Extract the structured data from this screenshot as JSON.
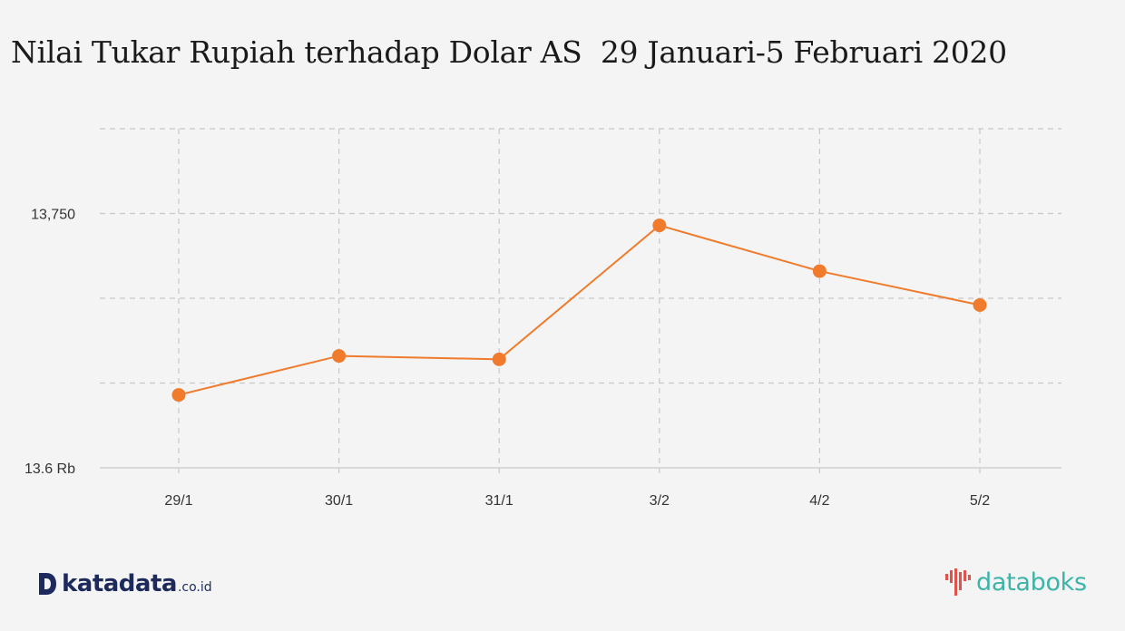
{
  "title": "Nilai Tukar Rupiah terhadap Dolar AS  29 Januari-5 Februari 2020",
  "chart_data": {
    "type": "line",
    "categories": [
      "29/1",
      "30/1",
      "31/1",
      "3/2",
      "4/2",
      "5/2"
    ],
    "series": [
      {
        "values": [
          13643,
          13666,
          13664,
          13743,
          13716,
          13696
        ]
      }
    ],
    "ylim": [
      13600,
      13800
    ],
    "yticks": [
      13600,
      13650,
      13700,
      13750,
      13800
    ],
    "ytick_labels": {
      "13600": "13.6 Rb",
      "13750": "13,750"
    },
    "grid": true,
    "xlabel": "",
    "ylabel": ""
  },
  "colors": {
    "line": "#f07b2c",
    "grid": "#c8c8c8",
    "axis": "#d0d0d0",
    "background": "#f4f4f4"
  },
  "brand": {
    "left_logo_icon": "katadata-logo-icon",
    "left_name": "katadata",
    "left_suffix": ".co.id",
    "right_logo_icon": "databoks-logo-icon",
    "right_name": "databoks"
  }
}
